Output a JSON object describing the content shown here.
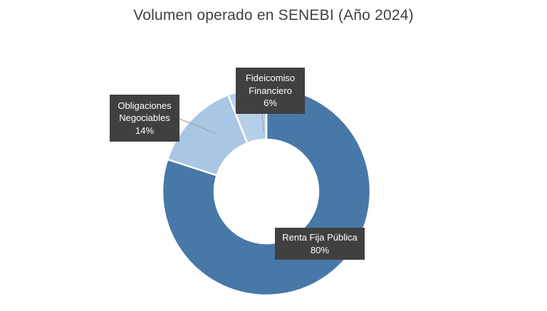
{
  "chart_data": {
    "type": "pie",
    "subtype": "donut",
    "title": "Volumen operado en SENEBI (Año 2024)",
    "categories": [
      "Renta Fija Pública",
      "Obligaciones Negociables",
      "Fideicomiso Financiero"
    ],
    "values": [
      80,
      14,
      6
    ],
    "value_labels": [
      "80%",
      "14%",
      "6%"
    ],
    "colors": [
      "#4878a8",
      "#a9c6e3",
      "#b6cfe9"
    ],
    "start_angle_deg": 0,
    "direction": "clockwise",
    "hole_ratio": 0.5,
    "legend_position": "none",
    "background": "#ffffff",
    "title_color": "#404040",
    "label_style": {
      "background": "#404040",
      "text_color": "#ffffff",
      "leader_line_color": "#a6a6a6",
      "slice_border_color": "#ffffff"
    }
  }
}
